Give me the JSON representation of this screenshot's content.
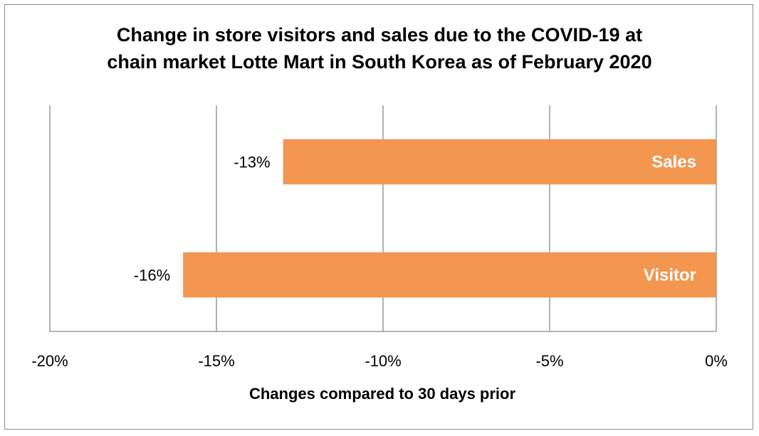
{
  "chart_data": {
    "type": "bar",
    "orientation": "horizontal",
    "title_line1": "Change in store visitors and sales due to the COVID-19 at",
    "title_line2": "chain market Lotte Mart in South Korea as of February 2020",
    "xlabel": "Changes compared to 30 days prior",
    "ylabel": "",
    "categories": [
      "Sales",
      "Visitor"
    ],
    "values": [
      -13,
      -16
    ],
    "data_labels": [
      "-13%",
      "-16%"
    ],
    "xlim": [
      -20,
      0
    ],
    "x_ticks": [
      -20,
      -15,
      -10,
      -5,
      0
    ],
    "x_tick_labels": [
      "-20%",
      "-15%",
      "-10%",
      "-5%",
      "0%"
    ],
    "bar_color": "#f29650",
    "grid": true,
    "legend": "none"
  }
}
